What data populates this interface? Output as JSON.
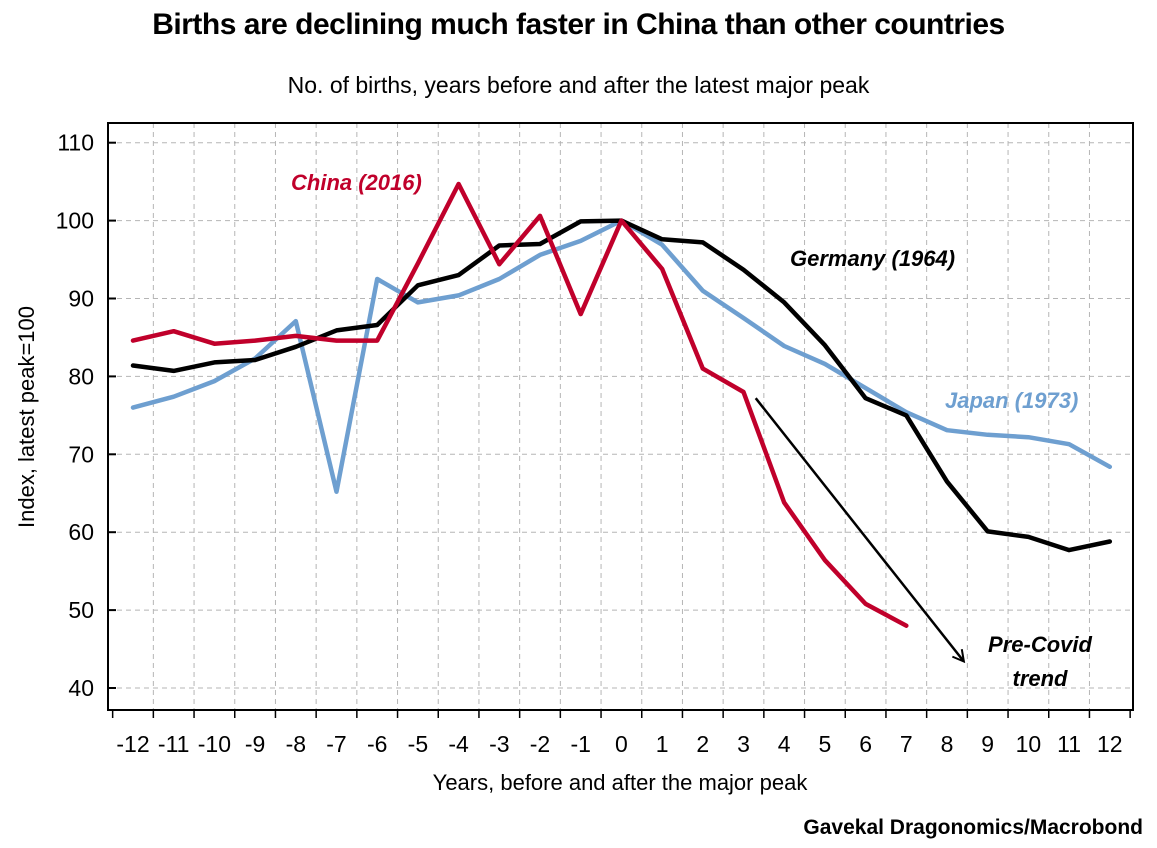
{
  "chart_data": {
    "type": "line",
    "title": "Births are declining much faster in China than other countries",
    "subtitle": "No. of births, years before and after the latest major peak",
    "xlabel": "Years, before and after the major peak",
    "ylabel": "Index, latest peak=100",
    "ylim": [
      40,
      110
    ],
    "yticks": [
      40,
      50,
      60,
      70,
      80,
      90,
      100,
      110
    ],
    "x": [
      -12,
      -11,
      -10,
      -9,
      -8,
      -7,
      -6,
      -5,
      -4,
      -3,
      -2,
      -1,
      0,
      1,
      2,
      3,
      4,
      5,
      6,
      7,
      8,
      9,
      10,
      11,
      12
    ],
    "series": [
      {
        "name": "China (2016)",
        "label": "China (2016)",
        "color": "#c0002b",
        "values": [
          84.6,
          85.8,
          84.2,
          84.6,
          85.2,
          84.6,
          84.6,
          94.5,
          104.7,
          94.4,
          100.6,
          88.0,
          100.0,
          93.8,
          81.0,
          78.0,
          63.8,
          56.4,
          50.8,
          48.0,
          null,
          null,
          null,
          null,
          null
        ]
      },
      {
        "name": "Germany (1964)",
        "label": "Germany (1964)",
        "color": "#000000",
        "values": [
          81.4,
          80.7,
          81.8,
          82.1,
          83.8,
          85.9,
          86.6,
          91.7,
          93.0,
          96.8,
          97.0,
          99.9,
          100.0,
          97.6,
          97.2,
          93.7,
          89.5,
          84.0,
          77.2,
          75.0,
          66.5,
          60.1,
          59.4,
          57.7,
          58.8
        ]
      },
      {
        "name": "Japan (1973)",
        "label": "Japan (1973)",
        "color": "#6e9fd0",
        "values": [
          76.0,
          77.4,
          79.4,
          82.3,
          87.1,
          65.2,
          92.5,
          89.5,
          90.4,
          92.5,
          95.6,
          97.4,
          100.0,
          96.9,
          91.0,
          87.5,
          83.9,
          81.6,
          78.5,
          75.4,
          73.1,
          72.5,
          72.2,
          71.3,
          68.4
        ]
      }
    ],
    "annotation": {
      "text_line1": "Pre-Covid",
      "text_line2": "trend",
      "arrow_from": [
        3.3,
        77.2
      ],
      "arrow_to": [
        8.4,
        43.5
      ]
    },
    "grid": true,
    "source": "Gavekal Dragonomics/Macrobond"
  }
}
